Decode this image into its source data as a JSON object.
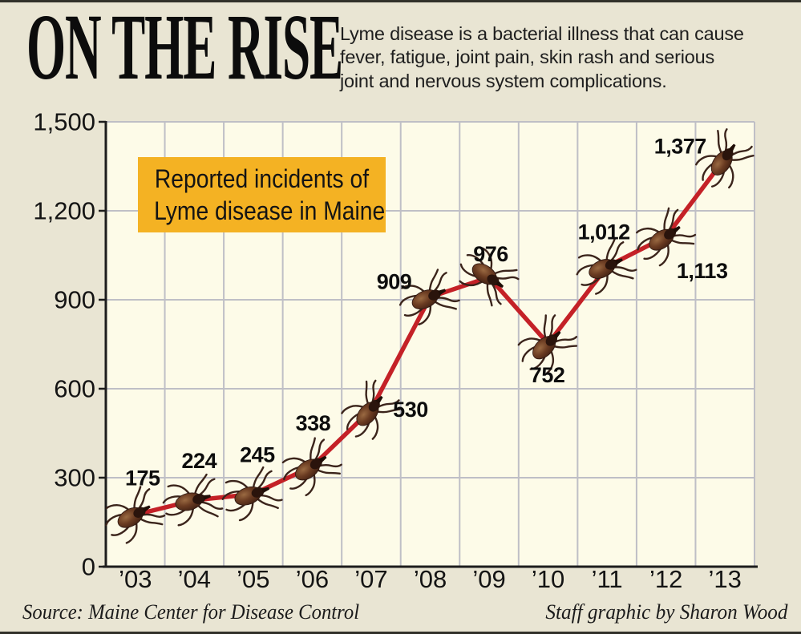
{
  "header": {
    "title": "ON THE RISE",
    "description_lines": [
      "Lyme disease is a bacterial illness that can cause",
      "fever, fatigue, joint pain, skin rash and serious",
      "joint and nervous system complications."
    ]
  },
  "chart_data": {
    "type": "line",
    "title": "Reported incidents of Lyme disease in Maine",
    "legend_lines": [
      "Reported incidents of",
      "Lyme disease in Maine"
    ],
    "categories": [
      "’03",
      "’04",
      "’05",
      "’06",
      "’07",
      "’08",
      "’09",
      "’10",
      "’11",
      "’12",
      "’13"
    ],
    "values": [
      175,
      224,
      245,
      338,
      530,
      909,
      976,
      752,
      1012,
      1113,
      1377
    ],
    "value_labels": [
      "175",
      "224",
      "245",
      "338",
      "530",
      "909",
      "976",
      "752",
      "1,012",
      "1,113",
      "1,377"
    ],
    "xlabel": "",
    "ylabel": "",
    "ylim": [
      0,
      1500
    ],
    "ytick_step": 300,
    "ytick_labels": [
      "0",
      "300",
      "600",
      "900",
      "1,200",
      "1,500"
    ],
    "grid": true,
    "legend_position": "top-left-inside",
    "marker": "deer-tick",
    "colors": {
      "line": "#c42127",
      "legend_box": "#f4b223",
      "plot_bg": "#fdfbe8",
      "page_bg": "#e9e5d3",
      "gridline": "#bfbfc6",
      "axis": "#1d1d1d",
      "text": "#141414"
    }
  },
  "footer": {
    "source": "Source: Maine Center for Disease Control",
    "credit": "Staff graphic by Sharon Wood"
  }
}
